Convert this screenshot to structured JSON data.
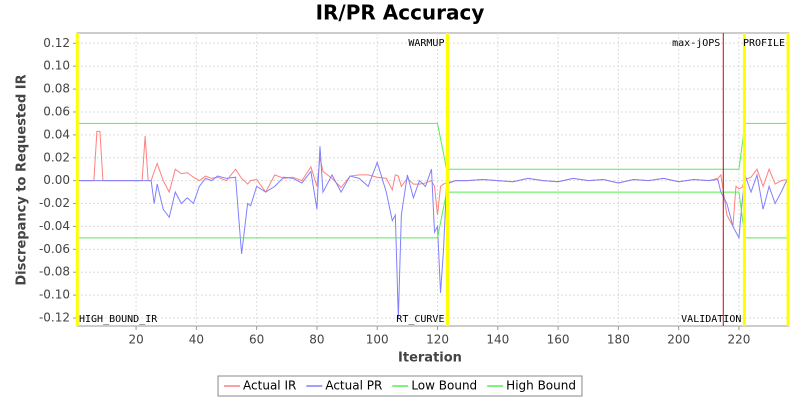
{
  "chart_data": {
    "type": "line",
    "title": "IR/PR Accuracy",
    "x_label": "Iteration",
    "y_label": "Discrepancy to Requested IR",
    "xlim": [
      0.4,
      236.6
    ],
    "ylim": [
      -0.127,
      0.129
    ],
    "xticks": [
      20,
      40,
      60,
      80,
      100,
      120,
      140,
      160,
      180,
      200,
      220
    ],
    "yticks": [
      0.12,
      {
        "value": 0.1,
        "label": "0.10"
      },
      0.08,
      0.06,
      0.04,
      0.02,
      {
        "value": 0,
        "label": "0.00"
      },
      -0.02,
      -0.04,
      -0.06,
      -0.08,
      {
        "value": -0.1,
        "label": "-0.10"
      },
      -0.12
    ],
    "grid": true,
    "series": [
      {
        "name": "Actual IR",
        "color": "#ff8080",
        "x": [
          1,
          6,
          7,
          8,
          9,
          22,
          23,
          24,
          25,
          26,
          27,
          29,
          31,
          33,
          35,
          37,
          39,
          41,
          43,
          45,
          47,
          50,
          53,
          55,
          57,
          58,
          60,
          63,
          66,
          69,
          72,
          75,
          78,
          80,
          81,
          82,
          85,
          88,
          91,
          94,
          97,
          100,
          103,
          105,
          106,
          107,
          108,
          110,
          112,
          114,
          116,
          118,
          119,
          120,
          121,
          122,
          123,
          126,
          130,
          135,
          140,
          145,
          150,
          155,
          160,
          165,
          170,
          175,
          180,
          185,
          190,
          195,
          200,
          205,
          210,
          213,
          214,
          216,
          218,
          219,
          220,
          221,
          222,
          224,
          226,
          228,
          230,
          232,
          234,
          236
        ],
        "values": [
          0,
          0,
          0.043,
          0.043,
          0,
          0,
          0.039,
          0,
          0,
          0.008,
          0.015,
          0,
          -0.01,
          0.01,
          0.006,
          0.007,
          0.003,
          0,
          0.004,
          0.002,
          0.003,
          0,
          0.01,
          0.002,
          -0.003,
          0,
          0.001,
          -0.01,
          0.005,
          0.002,
          0.003,
          0,
          0.012,
          -0.005,
          0.02,
          0.008,
          0.002,
          -0.006,
          0.004,
          0.005,
          0.005,
          0.003,
          0.002,
          -0.008,
          0.005,
          0.004,
          -0.005,
          0.002,
          -0.003,
          -0.003,
          -0.002,
          0,
          -0.005,
          -0.03,
          -0.005,
          -0.003,
          -0.002,
          0,
          0,
          0.001,
          0,
          -0.001,
          0.002,
          0,
          -0.001,
          0.002,
          0,
          0.001,
          -0.002,
          0.001,
          0,
          0.002,
          -0.001,
          0.001,
          0,
          0.002,
          0.005,
          -0.03,
          -0.04,
          -0.005,
          -0.007,
          -0.006,
          0.001,
          0.003,
          0.01,
          -0.005,
          0.01,
          -0.003,
          0,
          0.001
        ]
      },
      {
        "name": "Actual PR",
        "color": "#8080ff",
        "x": [
          1,
          6,
          7,
          8,
          9,
          22,
          23,
          24,
          25,
          26,
          27,
          29,
          31,
          33,
          35,
          37,
          39,
          41,
          43,
          45,
          47,
          50,
          53,
          55,
          57,
          58,
          60,
          63,
          66,
          69,
          72,
          75,
          78,
          80,
          81,
          82,
          85,
          88,
          91,
          94,
          97,
          100,
          103,
          105,
          106,
          107,
          108,
          110,
          112,
          114,
          116,
          118,
          119,
          120,
          121,
          122,
          123,
          126,
          130,
          135,
          140,
          145,
          150,
          155,
          160,
          165,
          170,
          175,
          180,
          185,
          190,
          195,
          200,
          205,
          210,
          213,
          214,
          216,
          218,
          219,
          220,
          221,
          222,
          224,
          226,
          228,
          230,
          232,
          234,
          236
        ],
        "values": [
          0,
          0,
          0,
          0,
          0,
          0,
          0,
          0,
          0,
          -0.02,
          -0.003,
          -0.025,
          -0.032,
          -0.01,
          -0.02,
          -0.015,
          -0.02,
          -0.005,
          0.002,
          0,
          0.004,
          0.002,
          0.003,
          -0.064,
          -0.02,
          -0.022,
          -0.005,
          -0.01,
          -0.005,
          0.003,
          0.002,
          -0.002,
          0.008,
          -0.025,
          0.03,
          -0.01,
          0.005,
          -0.01,
          0.004,
          0.002,
          -0.005,
          0.016,
          -0.01,
          -0.035,
          -0.03,
          -0.12,
          -0.03,
          0.005,
          -0.015,
          0,
          -0.005,
          0.01,
          -0.045,
          -0.04,
          -0.098,
          -0.06,
          -0.003,
          0,
          0,
          0.001,
          0,
          -0.001,
          0.002,
          0,
          -0.001,
          0.002,
          0,
          0.001,
          -0.002,
          0.001,
          0,
          0.002,
          -0.001,
          0.001,
          0,
          0.001,
          -0.01,
          -0.02,
          -0.04,
          -0.045,
          -0.05,
          -0.02,
          0.005,
          -0.01,
          0.005,
          -0.025,
          -0.005,
          -0.02,
          -0.01,
          0.001
        ]
      },
      {
        "name": "Low Bound",
        "color": "#55ee55",
        "x": [
          1,
          120,
          123,
          220,
          222,
          236
        ],
        "values": [
          -0.05,
          -0.05,
          -0.01,
          -0.01,
          -0.05,
          -0.05
        ]
      },
      {
        "name": "High Bound",
        "color": "#55ee55",
        "x": [
          1,
          120,
          123,
          220,
          222,
          236
        ],
        "values": [
          0.05,
          0.05,
          0.01,
          0.01,
          0.05,
          0.05
        ]
      }
    ],
    "markers": [
      {
        "x": 0.5,
        "label": "HIGH_BOUND_IR",
        "color": "#ffff00",
        "position": "bottom"
      },
      {
        "x": 123.3,
        "label": "WARMUP",
        "color": "#ffff00",
        "position": "top"
      },
      {
        "x": 123.3,
        "label": "RT_CURVE",
        "color": "#ffff00",
        "position": "bottom"
      },
      {
        "x": 214.8,
        "label": "max-jOPS",
        "color": "#dd0000",
        "position": "top"
      },
      {
        "x": 221.8,
        "label": "VALIDATION",
        "color": "#ffff00",
        "position": "bottom"
      },
      {
        "x": 236.3,
        "label": "PROFILE",
        "color": "#ffff00",
        "position": "top"
      }
    ]
  }
}
